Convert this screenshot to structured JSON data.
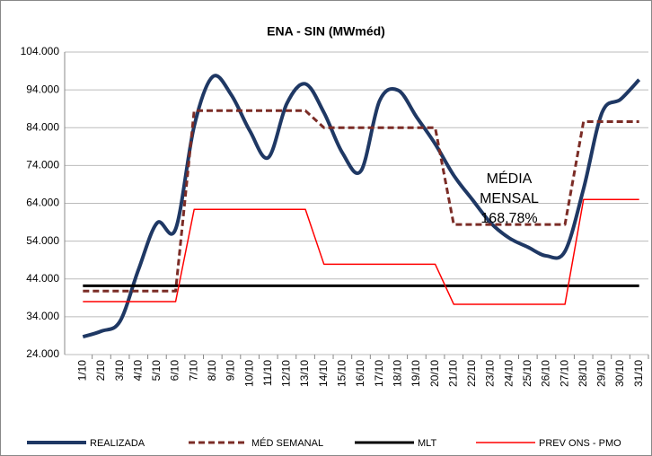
{
  "chart_data": {
    "type": "line",
    "title": "ENA - SIN (MWméd)",
    "categories": [
      "1/10",
      "2/10",
      "3/10",
      "4/10",
      "5/10",
      "6/10",
      "7/10",
      "8/10",
      "9/10",
      "10/10",
      "11/10",
      "12/10",
      "13/10",
      "14/10",
      "15/10",
      "16/10",
      "17/10",
      "18/10",
      "19/10",
      "20/10",
      "21/10",
      "22/10",
      "23/10",
      "24/10",
      "25/10",
      "26/10",
      "27/10",
      "28/10",
      "29/10",
      "30/10",
      "31/10"
    ],
    "series": [
      {
        "name": "REALIZADA",
        "color": "#1f3864",
        "width": 4,
        "dashed": false,
        "smooth": true,
        "values": [
          28700,
          30200,
          32800,
          46500,
          58800,
          57200,
          84400,
          97500,
          92700,
          83200,
          76100,
          90400,
          95600,
          88000,
          77300,
          72600,
          91100,
          93900,
          86800,
          79700,
          71400,
          65000,
          58800,
          54800,
          52400,
          50100,
          51300,
          67800,
          88000,
          91500,
          96700
        ]
      },
      {
        "name": "MÉD SEMANAL",
        "color": "#7b2c26",
        "width": 3,
        "dashed": true,
        "smooth": false,
        "values": [
          40800,
          40800,
          40800,
          40800,
          40800,
          40800,
          88500,
          88500,
          88500,
          88500,
          88500,
          88500,
          88500,
          84000,
          84000,
          84000,
          84000,
          84000,
          84000,
          84000,
          58400,
          58400,
          58400,
          58400,
          58400,
          58400,
          58400,
          85600,
          85600,
          85600,
          85600
        ]
      },
      {
        "name": "MLT",
        "color": "#000000",
        "width": 3,
        "dashed": false,
        "smooth": false,
        "values": [
          42200,
          42200,
          42200,
          42200,
          42200,
          42200,
          42200,
          42200,
          42200,
          42200,
          42200,
          42200,
          42200,
          42200,
          42200,
          42200,
          42200,
          42200,
          42200,
          42200,
          42200,
          42200,
          42200,
          42200,
          42200,
          42200,
          42200,
          42200,
          42200,
          42200,
          42200
        ]
      },
      {
        "name": "PREV ONS - PMO",
        "color": "#ff0000",
        "width": 1.5,
        "dashed": false,
        "smooth": false,
        "values": [
          38000,
          38000,
          38000,
          38000,
          38000,
          38000,
          62400,
          62400,
          62400,
          62400,
          62400,
          62400,
          62400,
          47900,
          47900,
          47900,
          47900,
          47900,
          47900,
          47900,
          37300,
          37300,
          37300,
          37300,
          37300,
          37300,
          37300,
          65000,
          65000,
          65000,
          65000
        ]
      }
    ],
    "annotation": [
      "MÉDIA",
      "MENSAL",
      "168,78%"
    ],
    "ylim": [
      24000,
      104000
    ],
    "yticks": [
      {
        "value": 24000,
        "label": "24.000"
      },
      {
        "value": 34000,
        "label": "34.000"
      },
      {
        "value": 44000,
        "label": "44.000"
      },
      {
        "value": 54000,
        "label": "54.000"
      },
      {
        "value": 64000,
        "label": "64.000"
      },
      {
        "value": 74000,
        "label": "74.000"
      },
      {
        "value": 84000,
        "label": "84.000"
      },
      {
        "value": 94000,
        "label": "94.000"
      },
      {
        "value": 104000,
        "label": "104.000"
      }
    ],
    "grid": true,
    "legend": "bottom"
  }
}
